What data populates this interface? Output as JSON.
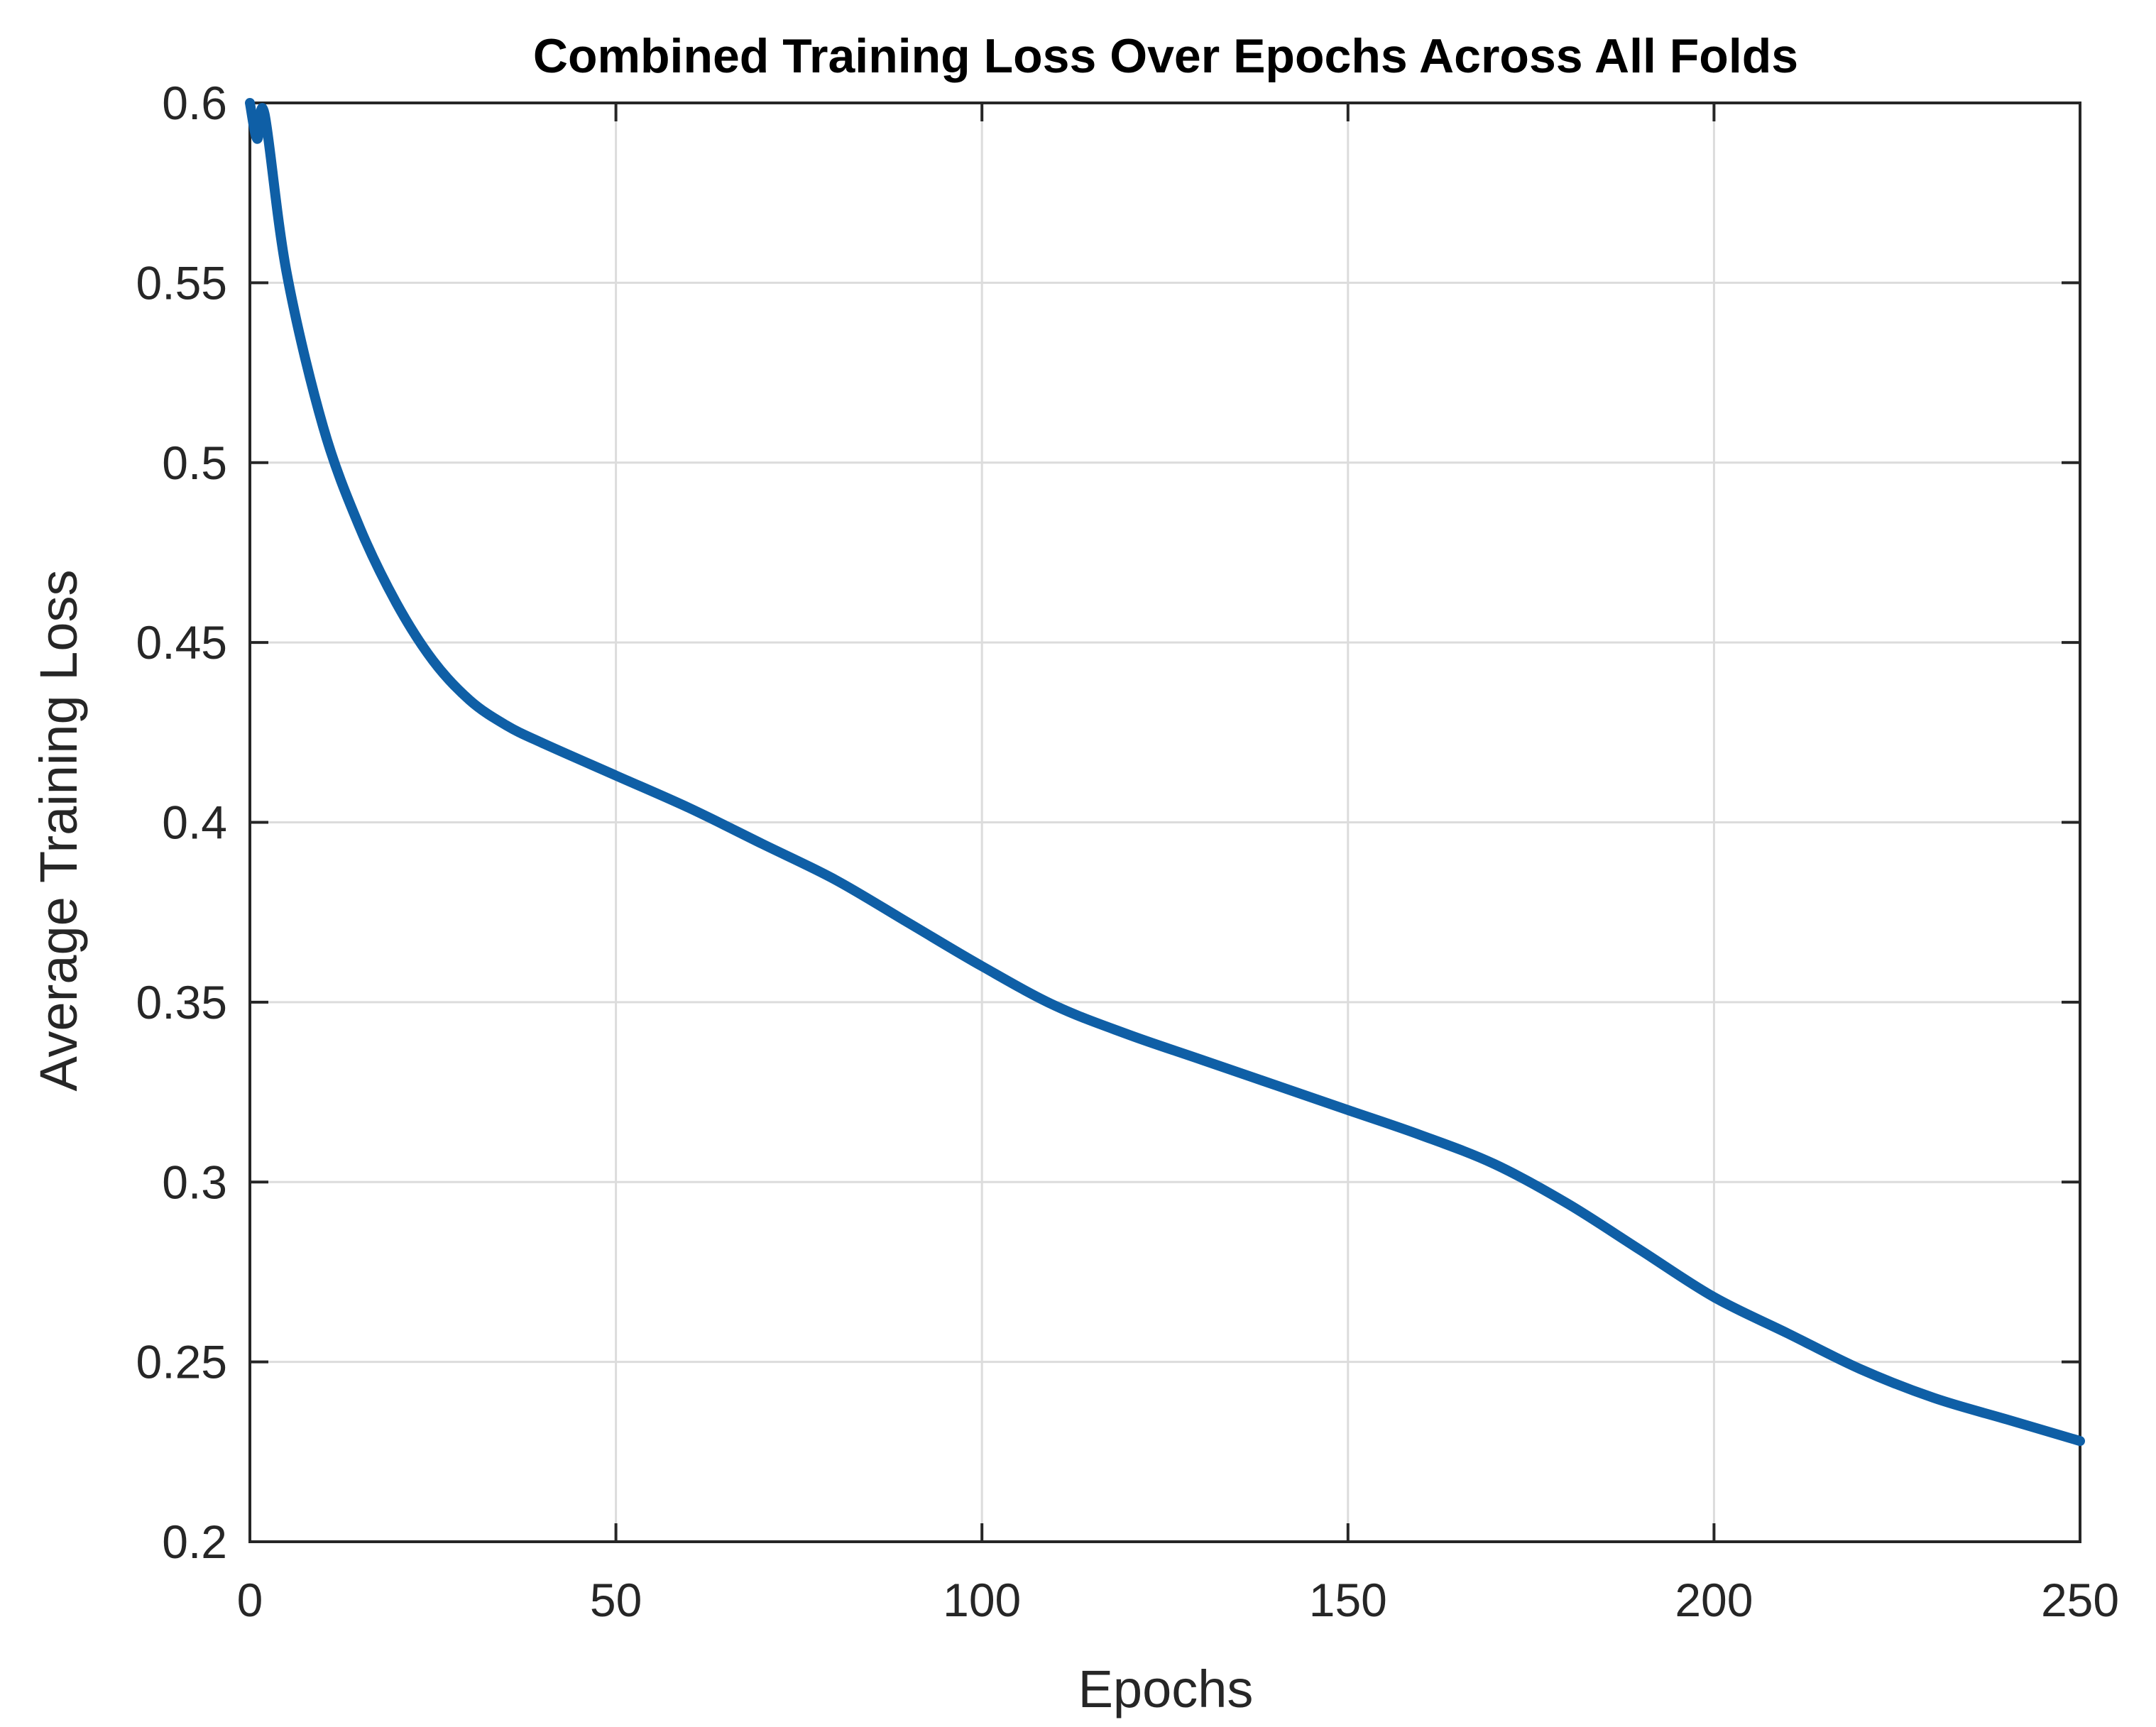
{
  "chart_data": {
    "type": "line",
    "title": "Combined Training Loss Over Epochs Across All Folds",
    "xlabel": "Epochs",
    "ylabel": "Average Training Loss",
    "xlim": [
      0,
      250
    ],
    "ylim": [
      0.2,
      0.6
    ],
    "xticks": [
      "0",
      "50",
      "100",
      "150",
      "200",
      "250"
    ],
    "yticks": [
      "0.2",
      "0.25",
      "0.3",
      "0.35",
      "0.4",
      "0.45",
      "0.5",
      "0.55",
      "0.6"
    ],
    "grid": true,
    "series": [
      {
        "color": "#0f5fa6",
        "x": [
          0,
          1,
          2,
          5,
          10,
          15,
          20,
          25,
          30,
          35,
          40,
          50,
          60,
          70,
          80,
          90,
          100,
          110,
          120,
          130,
          140,
          150,
          160,
          170,
          180,
          190,
          200,
          210,
          220,
          230,
          240,
          250
        ],
        "y": [
          0.6,
          0.59,
          0.597,
          0.553,
          0.51,
          0.482,
          0.461,
          0.445,
          0.434,
          0.427,
          0.422,
          0.413,
          0.404,
          0.394,
          0.384,
          0.372,
          0.36,
          0.349,
          0.341,
          0.334,
          0.327,
          0.32,
          0.313,
          0.305,
          0.294,
          0.281,
          0.268,
          0.258,
          0.248,
          0.24,
          0.234,
          0.228
        ]
      }
    ]
  }
}
